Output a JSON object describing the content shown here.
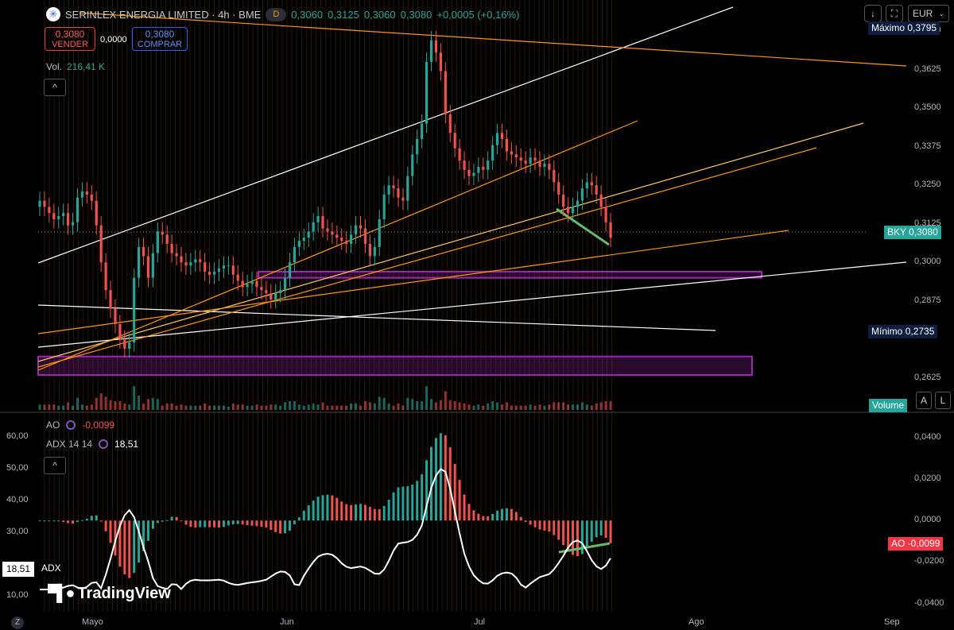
{
  "header": {
    "symbol": "SERINLEX ENERGIA LIMITED · 4h · BME",
    "d_badge": "D",
    "open": "0,3060",
    "high": "0,3125",
    "low": "0,3060",
    "close": "0,3080",
    "change": "+0,0005 (+0,16%)",
    "sell_price": "0,3080",
    "sell_label": "VENDER",
    "spread": "0,0000",
    "buy_price": "0,3080",
    "buy_label": "COMPRAR",
    "volume_label": "Vol.",
    "volume_value": "216,41 K"
  },
  "toolbar": {
    "currency": "EUR",
    "download_icon": "arrow-down-icon",
    "fullscreen_icon": "expand-icon",
    "chevron": "chevron-down-icon",
    "collapse_glyph": "^"
  },
  "price_axis": {
    "ticks": [
      "0,3750",
      "0,3625",
      "0,3500",
      "0,3375",
      "0,3250",
      "0,3125",
      "0,3000",
      "0,2875",
      "0,2625"
    ],
    "max_label": "Máximo",
    "max_value": "0,3795",
    "last_symbol": "BKY",
    "last_value": "0,3080",
    "min_label": "Mínimo",
    "min_value": "0,2735",
    "volume_tag": "Volume",
    "auto_btn": "A",
    "log_btn": "L"
  },
  "indicators": {
    "ao_name": "AO",
    "ao_value": "-0,0099",
    "adx_name": "ADX 14 14",
    "adx_value": "18,51",
    "left_ticks": [
      "60,00",
      "50,00",
      "40,00",
      "30,00",
      "10,00"
    ],
    "right_ticks": [
      "0,0400",
      "0,0200",
      "0,0000",
      "-0,0200",
      "-0,0400"
    ],
    "ao_tag": "AO",
    "ao_tag_value": "-0,0099",
    "adx_tag": "ADX",
    "adx_tag_value": "18,51"
  },
  "time_axis": {
    "months": [
      "Mayo",
      "Jun",
      "Jul",
      "Ago",
      "Sep"
    ],
    "zoom_btn": "Z"
  },
  "branding": {
    "logo_text": "TradingView"
  },
  "colors": {
    "up": "#26a69a",
    "down": "#ef5350",
    "accent": "#2962ff",
    "zone": "#9c27b0",
    "trend_orange": "#ff9800"
  },
  "chart_data": {
    "type": "candlestick",
    "timeframe": "4h",
    "currency": "EUR",
    "price_range": [
      0.255,
      0.383
    ],
    "volume": "216,41 K",
    "zones": [
      {
        "from": 0.295,
        "to": 0.297,
        "color": "#9c27b0"
      },
      {
        "from": 0.2635,
        "to": 0.2695,
        "color": "#9c27b0"
      }
    ],
    "closes": [
      0.32,
      0.318,
      0.316,
      0.314,
      0.315,
      0.316,
      0.312,
      0.313,
      0.321,
      0.323,
      0.322,
      0.32,
      0.312,
      0.3,
      0.291,
      0.285,
      0.28,
      0.275,
      0.272,
      0.274,
      0.295,
      0.305,
      0.302,
      0.295,
      0.303,
      0.31,
      0.309,
      0.306,
      0.303,
      0.302,
      0.3,
      0.299,
      0.3,
      0.301,
      0.3,
      0.297,
      0.296,
      0.297,
      0.298,
      0.299,
      0.299,
      0.296,
      0.294,
      0.292,
      0.293,
      0.294,
      0.292,
      0.291,
      0.29,
      0.288,
      0.29,
      0.291,
      0.295,
      0.3,
      0.305,
      0.307,
      0.308,
      0.31,
      0.313,
      0.315,
      0.311,
      0.31,
      0.309,
      0.308,
      0.307,
      0.306,
      0.309,
      0.312,
      0.311,
      0.306,
      0.302,
      0.305,
      0.314,
      0.322,
      0.325,
      0.324,
      0.321,
      0.32,
      0.328,
      0.335,
      0.34,
      0.345,
      0.365,
      0.372,
      0.368,
      0.362,
      0.348,
      0.342,
      0.337,
      0.333,
      0.33,
      0.328,
      0.329,
      0.331,
      0.33,
      0.333,
      0.338,
      0.342,
      0.34,
      0.336,
      0.335,
      0.334,
      0.333,
      0.332,
      0.334,
      0.333,
      0.331,
      0.332,
      0.33,
      0.326,
      0.322,
      0.318,
      0.316,
      0.318,
      0.32,
      0.324,
      0.326,
      0.325,
      0.322,
      0.318,
      0.313,
      0.308
    ]
  }
}
